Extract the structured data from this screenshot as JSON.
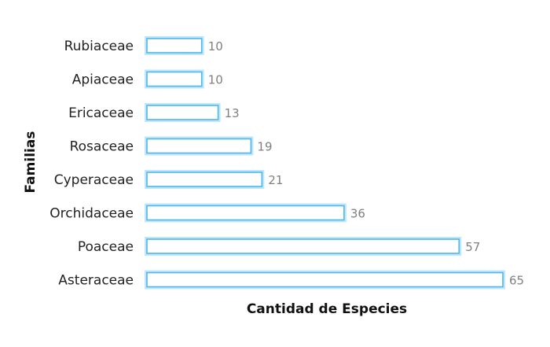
{
  "chart_data": {
    "type": "bar",
    "orientation": "horizontal",
    "categories": [
      "Rubiaceae",
      "Apiaceae",
      "Ericaceae",
      "Rosaceae",
      "Cyperaceae",
      "Orchidaceae",
      "Poaceae",
      "Asteraceae"
    ],
    "values": [
      10,
      10,
      13,
      19,
      21,
      36,
      57,
      65
    ],
    "xlabel": "Cantidad de Especies",
    "ylabel": "Familias",
    "xlim": [
      0,
      65
    ],
    "grid": false,
    "legend": "none",
    "data_labels": true,
    "colors": {
      "bar_fill": "#ffffff",
      "bar_stroke": "#4db8ec",
      "bar_glow": "#bfe6fb",
      "value_label": "#808080",
      "category_label": "#222222",
      "axis_title": "#111111"
    }
  }
}
